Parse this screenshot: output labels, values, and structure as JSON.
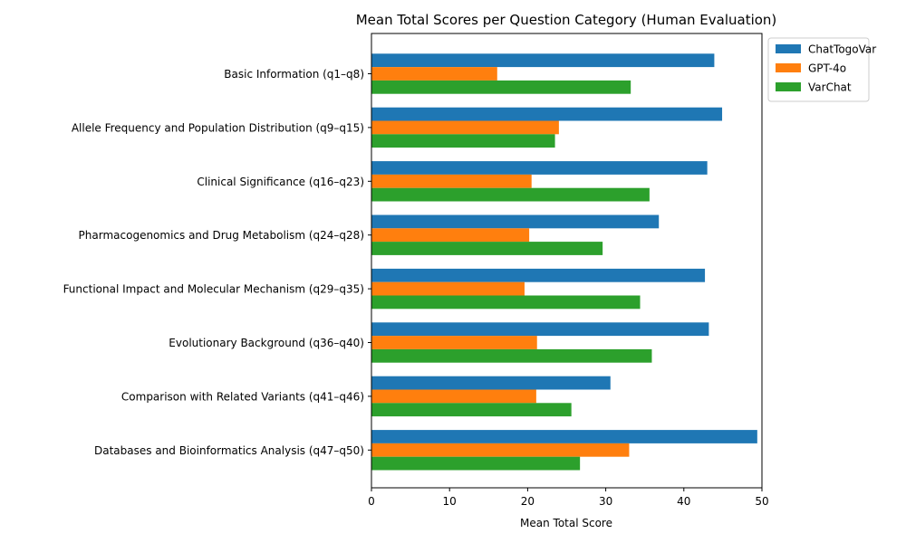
{
  "chart_data": {
    "type": "bar",
    "orientation": "horizontal",
    "title": "Mean Total Scores per Question Category (Human Evaluation)",
    "xlabel": "Mean Total Score",
    "ylabel": "",
    "xlim": [
      0,
      50
    ],
    "xticks": [
      0,
      10,
      20,
      30,
      40,
      50
    ],
    "grid": false,
    "legend_position": "outside-top-right",
    "categories": [
      "Basic Information (q1–q8)",
      "Allele Frequency and Population Distribution (q9–q15)",
      "Clinical Significance (q16–q23)",
      "Pharmacogenomics and Drug Metabolism (q24–q28)",
      "Functional Impact and Molecular Mechanism (q29–q35)",
      "Evolutionary Background (q36–q40)",
      "Comparison with Related Variants (q41–q46)",
      "Databases and Bioinformatics Analysis (q47–q50)"
    ],
    "series": [
      {
        "name": "ChatTogoVar",
        "color": "#1f77b4",
        "values": [
          43.9,
          44.9,
          43.0,
          36.8,
          42.7,
          43.2,
          30.6,
          49.4
        ]
      },
      {
        "name": "GPT-4o",
        "color": "#ff7f0e",
        "values": [
          16.1,
          24.0,
          20.5,
          20.2,
          19.6,
          21.2,
          21.1,
          33.0
        ]
      },
      {
        "name": "VarChat",
        "color": "#2ca02c",
        "values": [
          33.2,
          23.5,
          35.6,
          29.6,
          34.4,
          35.9,
          25.6,
          26.7
        ]
      }
    ]
  }
}
